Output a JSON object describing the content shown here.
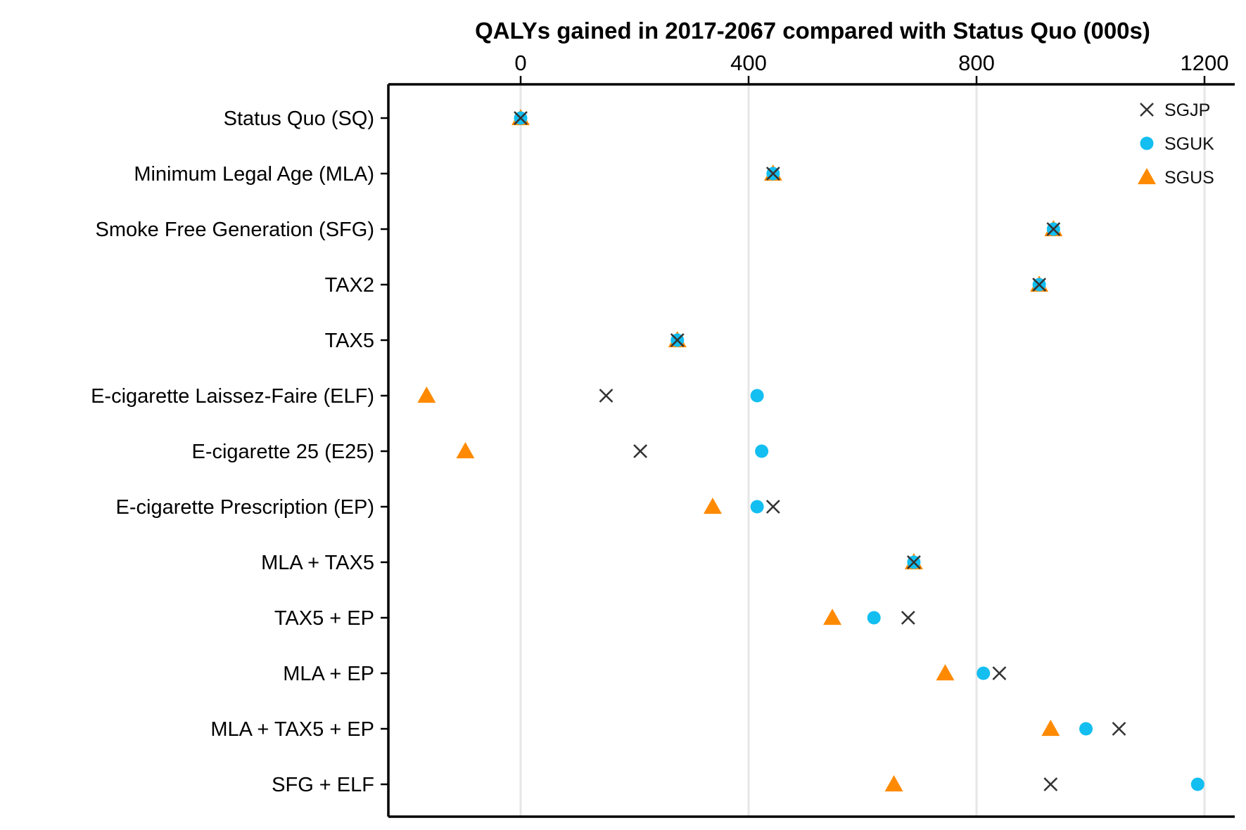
{
  "chart_data": {
    "type": "scatter",
    "title": "QALYs gained in 2017-2067 compared with Status Quo (000s)",
    "xlabel": "",
    "ylabel": "",
    "xlim": [
      -230,
      1250
    ],
    "xticks": [
      0,
      400,
      800,
      1200
    ],
    "grid": "vertical",
    "legend": "top-right",
    "categories": [
      "Status Quo (SQ)",
      "Minimum Legal Age (MLA)",
      "Smoke Free Generation (SFG)",
      "TAX2",
      "TAX5",
      "E-cigarette Laissez-Faire (ELF)",
      "E-cigarette 25 (E25)",
      "E-cigarette Prescription (EP)",
      "MLA + TAX5",
      "TAX5 + EP",
      "MLA + EP",
      "MLA + TAX5 + EP",
      "SFG + ELF"
    ],
    "series": [
      {
        "name": "SGJP",
        "marker": "cross",
        "color": "#333333",
        "values": [
          0,
          443,
          935,
          910,
          275,
          150,
          210,
          443,
          690,
          680,
          840,
          1050,
          930
        ]
      },
      {
        "name": "SGUK",
        "marker": "circle",
        "color": "#13BEF0",
        "values": [
          0,
          443,
          935,
          910,
          275,
          415,
          423,
          415,
          690,
          620,
          812,
          992,
          1188
        ]
      },
      {
        "name": "SGUS",
        "marker": "triangle",
        "color": "#FF8A00",
        "values": [
          0,
          443,
          935,
          910,
          275,
          -165,
          -97,
          337,
          690,
          547,
          745,
          930,
          655
        ]
      }
    ]
  }
}
